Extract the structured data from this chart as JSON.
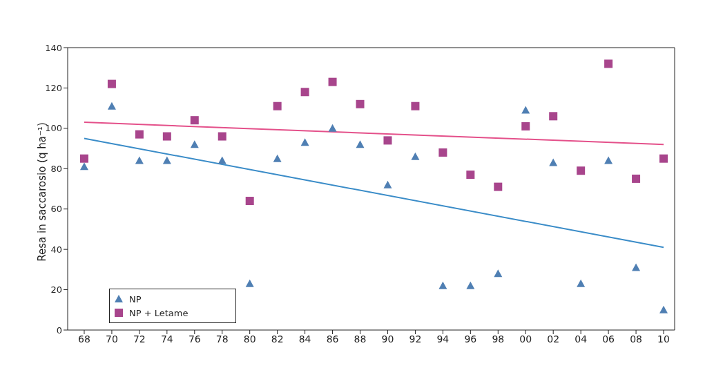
{
  "chart_data": {
    "type": "scatter",
    "ylabel": "Resa in saccarosio (q ha⁻¹)",
    "categories": [
      "68",
      "70",
      "72",
      "74",
      "76",
      "78",
      "80",
      "82",
      "84",
      "86",
      "88",
      "90",
      "92",
      "94",
      "96",
      "98",
      "00",
      "02",
      "04",
      "06",
      "08",
      "10"
    ],
    "series": [
      {
        "name": "NP",
        "marker": "triangle",
        "color": "#4f7fb3",
        "values": [
          81,
          111,
          84,
          84,
          92,
          84,
          23,
          85,
          93,
          100,
          92,
          72,
          86,
          22,
          22,
          28,
          109,
          83,
          23,
          84,
          31,
          10
        ]
      },
      {
        "name": "NP + Letame",
        "marker": "square",
        "color": "#a8458c",
        "values": [
          85,
          122,
          97,
          96,
          104,
          96,
          64,
          111,
          118,
          123,
          112,
          94,
          111,
          88,
          77,
          71,
          101,
          106,
          79,
          132,
          75,
          85
        ]
      },
      {
        "type": "line",
        "x": [
          "68",
          "10"
        ],
        "color": "#3a8cc8",
        "values": [
          95,
          41
        ]
      },
      {
        "type": "line",
        "x": [
          "68",
          "10"
        ],
        "color": "#e4508a",
        "values": [
          103,
          92
        ]
      }
    ],
    "ylim": [
      0,
      140
    ],
    "yticks": [
      0,
      20,
      40,
      60,
      80,
      100,
      120,
      140
    ],
    "grid": false,
    "legend": "bottom left"
  }
}
